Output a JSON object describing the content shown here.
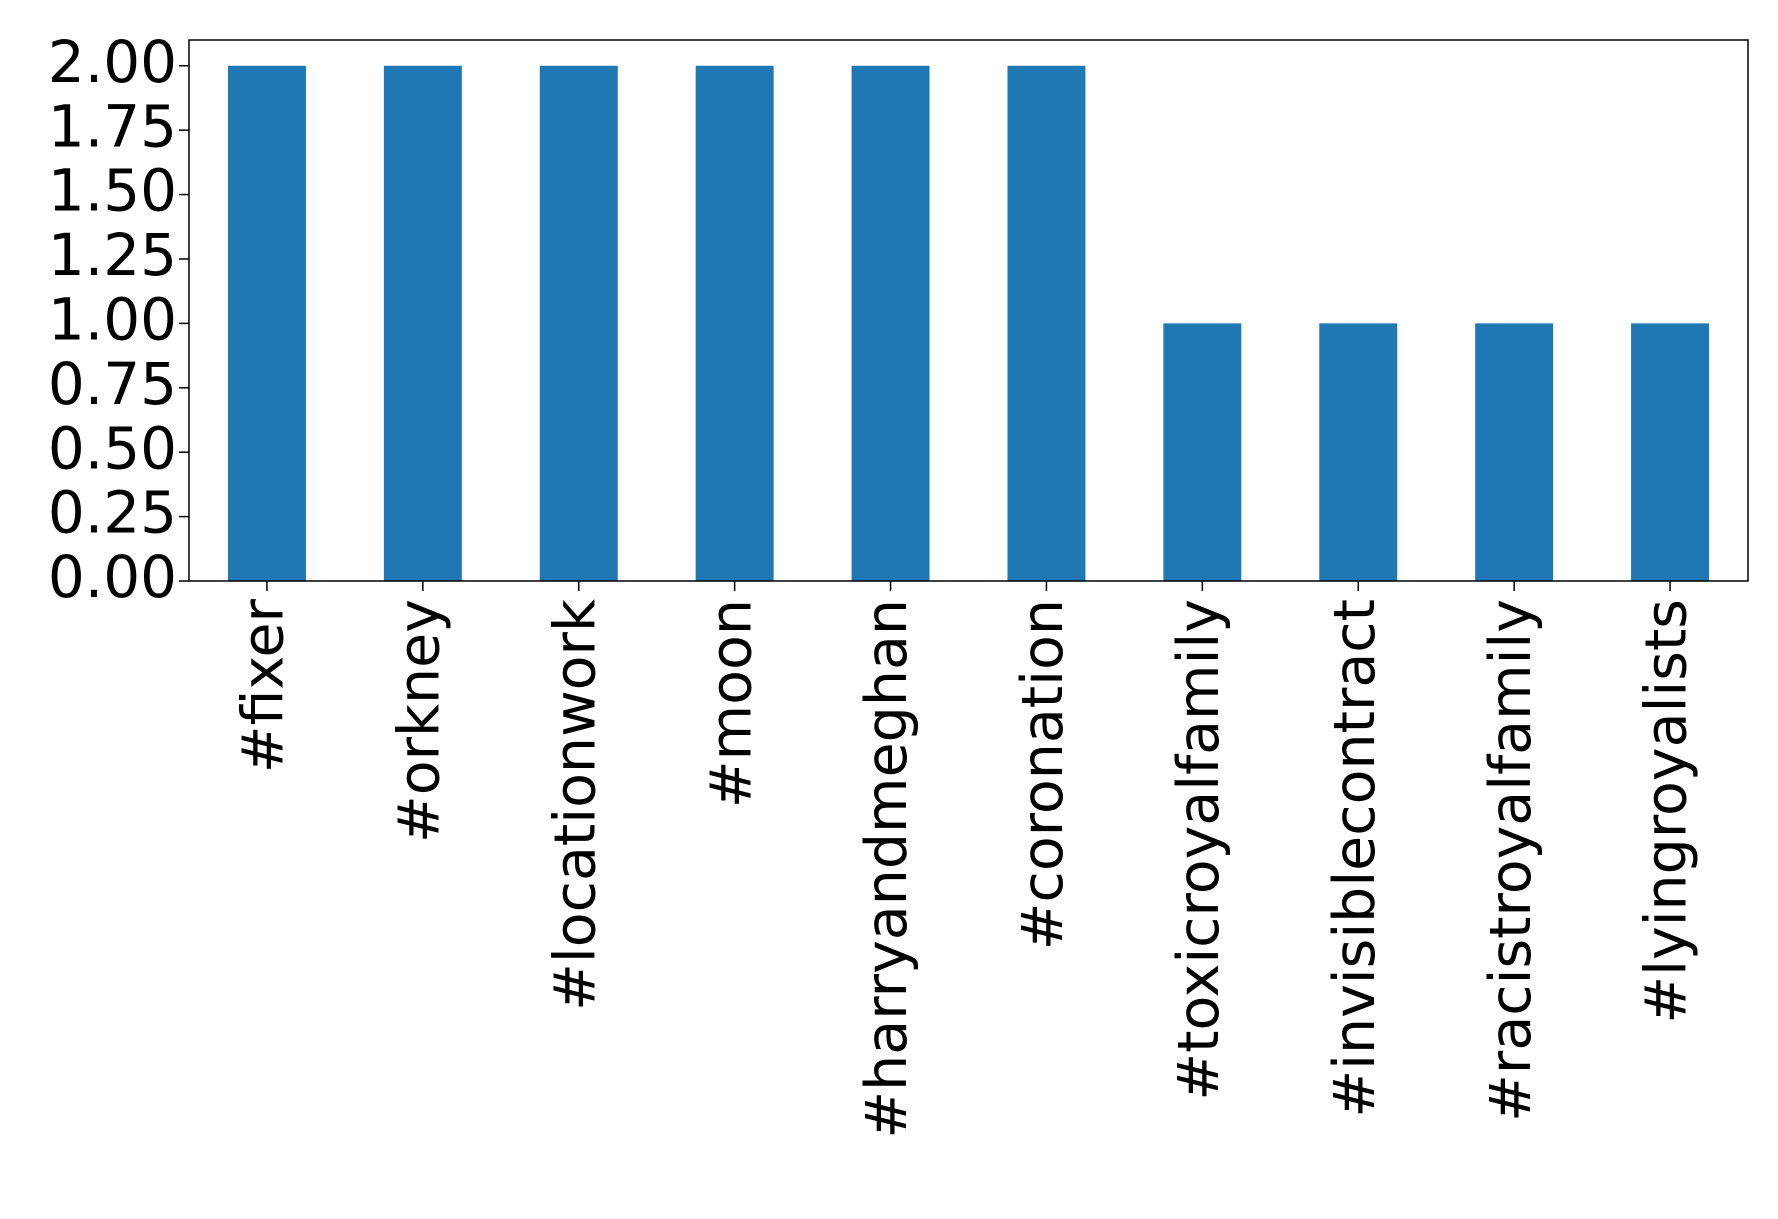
{
  "chart_data": {
    "type": "bar",
    "categories": [
      "#fixer",
      "#orkney",
      "#locationwork",
      "#moon",
      "#harryandmeghan",
      "#coronation",
      "#toxicroyalfamily",
      "#invisiblecontract",
      "#racistroyalfamily",
      "#lyingroyalists"
    ],
    "values": [
      2,
      2,
      2,
      2,
      2,
      2,
      1,
      1,
      1,
      1
    ],
    "color": "#1f77b4",
    "ylim": [
      0,
      2.1
    ],
    "yticks": [
      {
        "value": 0,
        "label": "0.00"
      },
      {
        "value": 0.25,
        "label": "0.25"
      },
      {
        "value": 0.5,
        "label": "0.50"
      },
      {
        "value": 0.75,
        "label": "0.75"
      },
      {
        "value": 1,
        "label": "1.00"
      },
      {
        "value": 1.25,
        "label": "1.25"
      },
      {
        "value": 1.5,
        "label": "1.50"
      },
      {
        "value": 1.75,
        "label": "1.75"
      },
      {
        "value": 2,
        "label": "2.00"
      }
    ],
    "grid": false
  }
}
